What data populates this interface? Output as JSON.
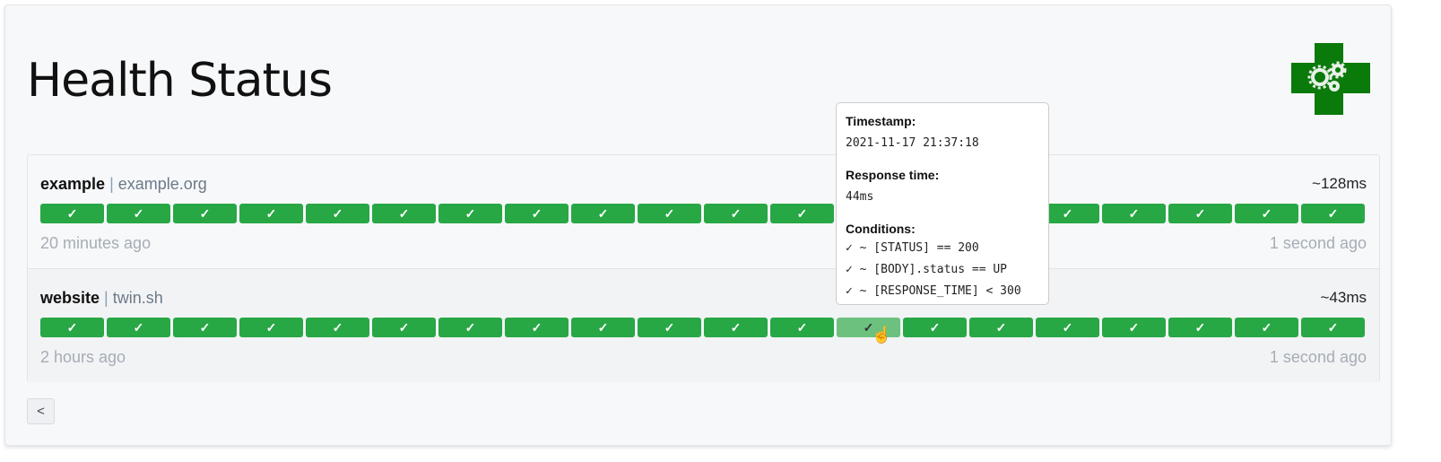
{
  "header": {
    "title": "Health Status",
    "logo_icon": "health-cross-gears-logo"
  },
  "colors": {
    "success": "#28a745",
    "success_hover": "#6cc17f",
    "logo": "#0a7a0a"
  },
  "services": [
    {
      "name": "example",
      "separator": "|",
      "hostname": "example.org",
      "avg_response": "~128ms",
      "oldest": "20 minutes ago",
      "newest": "1 second ago",
      "results": [
        "✓",
        "✓",
        "✓",
        "✓",
        "✓",
        "✓",
        "✓",
        "✓",
        "✓",
        "✓",
        "✓",
        "✓",
        "✓",
        "✓",
        "✓",
        "✓",
        "✓",
        "✓",
        "✓",
        "✓"
      ]
    },
    {
      "name": "website",
      "separator": "|",
      "hostname": "twin.sh",
      "avg_response": "~43ms",
      "oldest": "2 hours ago",
      "newest": "1 second ago",
      "results": [
        "✓",
        "✓",
        "✓",
        "✓",
        "✓",
        "✓",
        "✓",
        "✓",
        "✓",
        "✓",
        "✓",
        "✓",
        "✓",
        "✓",
        "✓",
        "✓",
        "✓",
        "✓",
        "✓",
        "✓"
      ]
    }
  ],
  "tooltip": {
    "timestamp_label": "Timestamp:",
    "timestamp": "2021-11-17 21:37:18",
    "response_label": "Response time:",
    "response": "44ms",
    "conditions_label": "Conditions:",
    "conditions": [
      "✓ ~ [STATUS] == 200",
      "✓ ~ [BODY].status == UP",
      "✓ ~ [RESPONSE_TIME] < 300"
    ]
  },
  "pagination": {
    "prev_label": "<"
  }
}
